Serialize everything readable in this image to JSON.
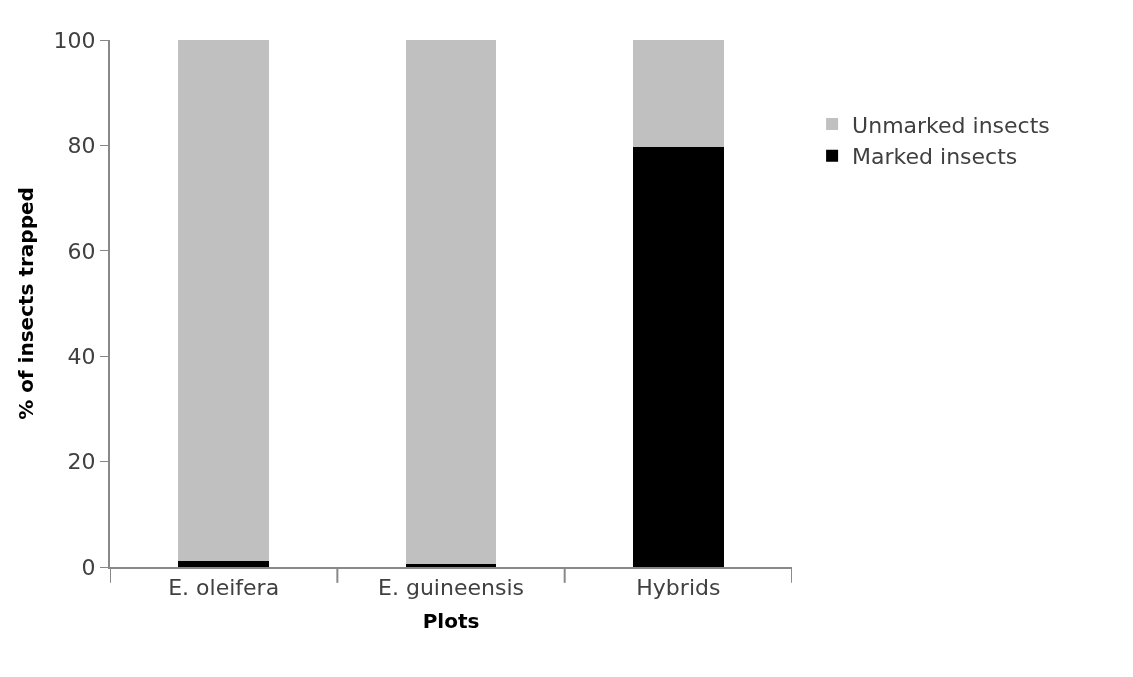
{
  "chart_data": {
    "type": "bar",
    "stacked": true,
    "xlabel": "Plots",
    "ylabel": "% of insects trapped",
    "categories": [
      "E. oleifera",
      "E. guineensis",
      "Hybrids"
    ],
    "series": [
      {
        "name": "Marked insects",
        "color": "#000000",
        "values": [
          1.2,
          0.6,
          79.7
        ]
      },
      {
        "name": "Unmarked insects",
        "color": "#c0c0c0",
        "values": [
          98.8,
          99.4,
          20.3
        ]
      }
    ],
    "ylim": [
      0,
      100
    ],
    "yticks": [
      0,
      20,
      40,
      60,
      80,
      100
    ],
    "legend": "right"
  }
}
